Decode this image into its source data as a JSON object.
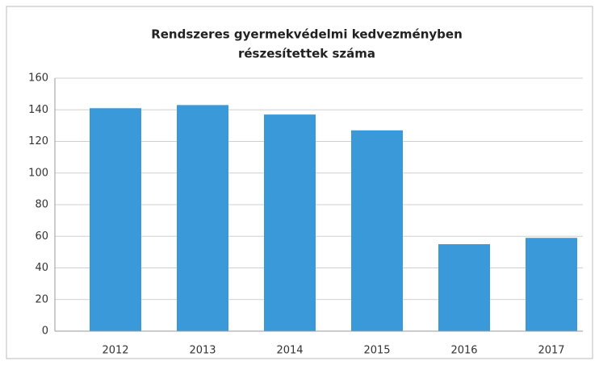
{
  "chart_data": {
    "type": "bar",
    "title": [
      "Rendszeres gyermekvédelmi kedvezményben",
      "részesítettek száma"
    ],
    "categories": [
      "2012",
      "2013",
      "2014",
      "2015",
      "2016",
      "2017"
    ],
    "values": [
      141,
      143,
      137,
      127,
      55,
      59
    ],
    "color": "#3a9ad9",
    "ylim": [
      0,
      160
    ],
    "yticks": [
      0,
      20,
      40,
      60,
      80,
      100,
      120,
      140,
      160
    ],
    "grid": true
  }
}
